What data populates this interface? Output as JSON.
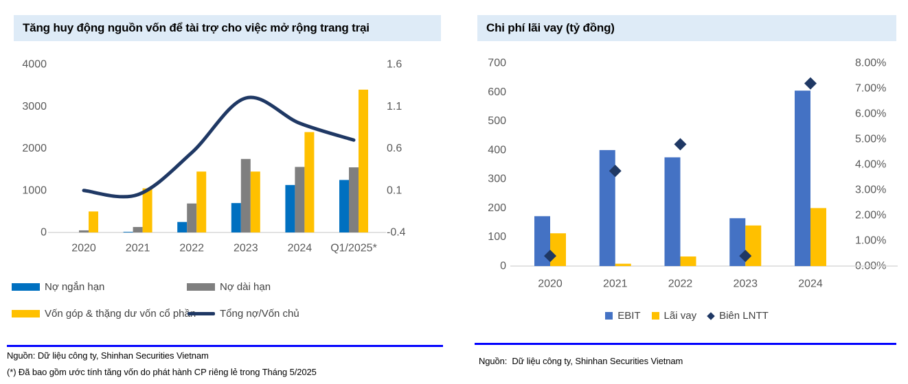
{
  "colors": {
    "title_band_bg": "#DEEBF7",
    "divider_blue": "#0000FE",
    "axis_label_gray": "#595959",
    "legend_text_gray": "#404040",
    "axis_line_gray": "#D9D9D9",
    "short_debt_blue": "#0070C0",
    "long_debt_gray": "#7F7F7F",
    "equity_yellow": "#FFC000",
    "ratio_navy": "#1F3864",
    "ebit_blue": "#4472C4"
  },
  "left_panel": {
    "title": "Tăng huy động nguồn vốn để tài trợ cho việc mở rộng trang trại",
    "legend": [
      {
        "label": "Nợ ngắn hạn",
        "color": "#0070C0",
        "type": "bar"
      },
      {
        "label": "Nợ dài hạn",
        "color": "#7F7F7F",
        "type": "bar"
      },
      {
        "label": "Vốn góp & thặng dư vốn cổ phần",
        "color": "#FFC000",
        "type": "bar"
      },
      {
        "label": "Tổng nợ/Vốn chủ",
        "color": "#1F3864",
        "type": "line"
      }
    ],
    "source_line1": "Nguồn: Dữ liệu công ty, Shinhan Securities Vietnam",
    "source_line2": "(*) Đã bao gồm ước tính tăng vốn do phát hành CP riêng lẻ trong Tháng 5/2025"
  },
  "right_panel": {
    "title": "Chi phí lãi vay (tỷ đồng)",
    "legend": [
      {
        "label": "EBIT",
        "color": "#4472C4",
        "type": "square"
      },
      {
        "label": "Lãi vay",
        "color": "#FFC000",
        "type": "square"
      },
      {
        "label": "Biên LNTT",
        "color": "#1F3864",
        "type": "diamond"
      }
    ],
    "source_line1": "Nguồn:  Dữ liệu công ty, Shinhan Securities Vietnam"
  },
  "chart_data": [
    {
      "type": "bar+line",
      "title": "Tăng huy động nguồn vốn để tài trợ cho việc mở rộng trang trại",
      "categories": [
        "2020",
        "2021",
        "2022",
        "2023",
        "2024",
        "Q1/2025*"
      ],
      "bar_series": [
        {
          "name": "Nợ ngắn hạn",
          "color": "#0070C0",
          "axis": "left",
          "values": [
            0,
            15,
            250,
            700,
            1130,
            1250
          ]
        },
        {
          "name": "Nợ dài hạn",
          "color": "#7F7F7F",
          "axis": "left",
          "values": [
            50,
            130,
            690,
            1750,
            1560,
            1550
          ]
        },
        {
          "name": "Vốn góp & thặng dư vốn cổ phần",
          "color": "#FFC000",
          "axis": "left",
          "values": [
            500,
            1050,
            1450,
            1450,
            2390,
            3400
          ]
        }
      ],
      "line_series": {
        "name": "Tổng nợ/Vốn chủ",
        "color": "#1F3864",
        "axis": "right",
        "smooth": true,
        "values": [
          0.1,
          0.05,
          0.55,
          1.2,
          0.9,
          0.7
        ]
      },
      "left_axis": {
        "min": 0,
        "max": 4000,
        "labels": [
          "0",
          "1000",
          "2000",
          "3000",
          "4000"
        ]
      },
      "right_axis": {
        "min": -0.4,
        "max": 1.6,
        "labels": [
          "-0.4",
          "0.1",
          "0.6",
          "1.1",
          "1.6"
        ]
      },
      "grid": false,
      "legend_position": "bottom-left"
    },
    {
      "type": "bar+scatter",
      "title": "Chi phí lãi vay (tỷ đồng)",
      "categories": [
        "2020",
        "2021",
        "2022",
        "2023",
        "2024"
      ],
      "bar_series": [
        {
          "name": "EBIT",
          "color": "#4472C4",
          "axis": "left",
          "values": [
            172,
            400,
            375,
            165,
            605
          ]
        },
        {
          "name": "Lãi vay",
          "color": "#FFC000",
          "axis": "left",
          "values": [
            113,
            8,
            33,
            140,
            200
          ]
        }
      ],
      "scatter_series": {
        "name": "Biên LNTT",
        "color": "#1F3864",
        "axis": "right",
        "marker": "diamond",
        "values": [
          0.004,
          0.0375,
          0.048,
          0.004,
          0.072
        ]
      },
      "left_axis": {
        "min": 0,
        "max": 700,
        "labels": [
          "0",
          "100",
          "200",
          "300",
          "400",
          "500",
          "600",
          "700"
        ]
      },
      "right_axis": {
        "min": 0,
        "max": 0.08,
        "labels": [
          "0.00%",
          "1.00%",
          "2.00%",
          "3.00%",
          "4.00%",
          "5.00%",
          "6.00%",
          "7.00%",
          "8.00%"
        ]
      },
      "grid": false,
      "legend_position": "bottom-center"
    }
  ]
}
